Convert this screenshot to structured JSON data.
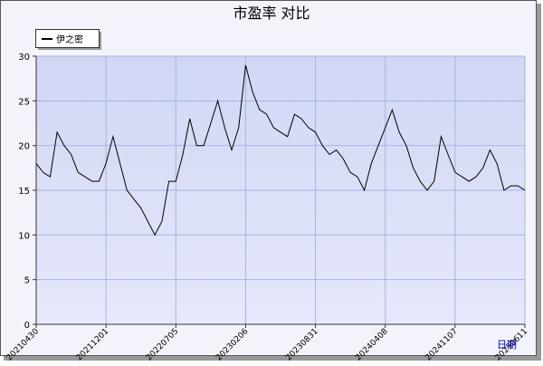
{
  "chart_data": {
    "type": "line",
    "title": "市盈率  对比",
    "x_label": "日期",
    "categories": [
      "20210430",
      null,
      null,
      null,
      null,
      null,
      null,
      null,
      null,
      null,
      "20211201",
      null,
      null,
      null,
      null,
      null,
      null,
      null,
      null,
      null,
      "20220705",
      null,
      null,
      null,
      null,
      null,
      null,
      null,
      null,
      null,
      "20230206",
      null,
      null,
      null,
      null,
      null,
      null,
      null,
      null,
      null,
      "20230831",
      null,
      null,
      null,
      null,
      null,
      null,
      null,
      null,
      null,
      "20240408",
      null,
      null,
      null,
      null,
      null,
      null,
      null,
      null,
      null,
      "20241107",
      null,
      null,
      null,
      null,
      null,
      null,
      null,
      null,
      null,
      "20250611"
    ],
    "series": [
      {
        "name": "伊之密",
        "color": "#000000",
        "values": [
          18,
          17,
          16.5,
          21.5,
          20,
          19,
          17,
          16.5,
          16,
          16,
          18,
          21,
          18,
          15,
          14,
          13,
          11.5,
          10,
          11.5,
          16,
          16,
          19,
          23,
          20,
          20,
          22.5,
          25,
          22,
          19.5,
          22,
          29,
          26,
          24,
          23.5,
          22,
          21.5,
          21,
          23.5,
          23,
          22,
          21.5,
          20,
          19,
          19.5,
          18.5,
          17,
          16.5,
          15,
          18,
          20,
          22,
          24,
          21.5,
          20,
          17.5,
          16,
          15,
          16,
          21,
          19,
          17,
          16.5,
          16,
          16.5,
          17.5,
          19.5,
          18,
          15,
          15.5,
          15.5,
          15
        ]
      }
    ],
    "ylim": [
      0,
      30
    ],
    "yticks": [
      0,
      5,
      10,
      15,
      20,
      25,
      30
    ],
    "grid": true,
    "legend": "top-left"
  }
}
